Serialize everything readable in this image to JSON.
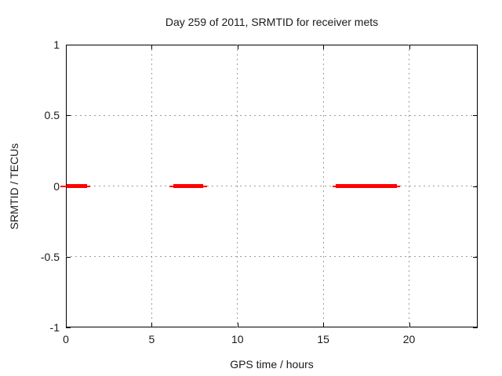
{
  "chart_data": {
    "type": "line",
    "title": "Day 259 of 2011, SRMTID for receiver mets",
    "xlabel": "GPS time / hours",
    "ylabel": "SRMTID / TECUs",
    "xlim": [
      0,
      24
    ],
    "ylim": [
      -1,
      1
    ],
    "grid": true,
    "legend": "none",
    "xticks": [
      {
        "v": 0,
        "label": "0"
      },
      {
        "v": 5,
        "label": "5"
      },
      {
        "v": 10,
        "label": "10"
      },
      {
        "v": 15,
        "label": "15"
      },
      {
        "v": 20,
        "label": "20"
      }
    ],
    "yticks": [
      {
        "v": 1,
        "label": "1"
      },
      {
        "v": 0.5,
        "label": "0.5"
      },
      {
        "v": 0,
        "label": "0"
      },
      {
        "v": -0.5,
        "label": "-0.5"
      },
      {
        "v": -1,
        "label": "-1"
      }
    ],
    "series": [
      {
        "name": "SRMTID",
        "color": "#ff0000",
        "style": "thick-horizontal-segments-at-constant-y",
        "y": 0,
        "segments": [
          {
            "x": [
              0.05,
              1.23
            ],
            "cap": [
              -0.3,
              1.42
            ]
          },
          {
            "x": [
              6.26,
              8.0
            ],
            "cap": [
              6.03,
              8.23
            ]
          },
          {
            "x": [
              15.74,
              19.29
            ],
            "cap": [
              15.54,
              19.47
            ]
          }
        ]
      }
    ],
    "colors": {
      "background": "#ffffff",
      "axis": "#000000",
      "grid": "#9e9e9e",
      "text": "#1a1a1a",
      "series_red": "#ff0000"
    }
  }
}
